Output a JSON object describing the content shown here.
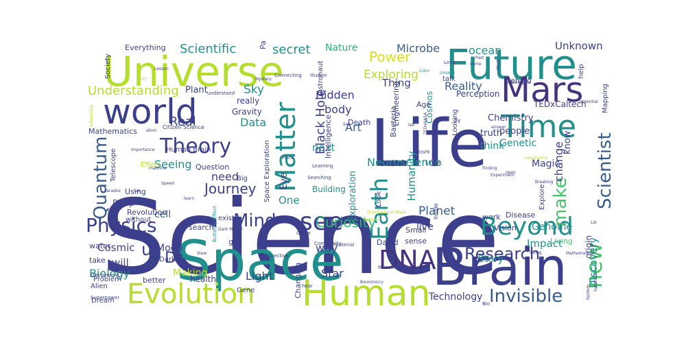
{
  "palette": {
    "navy": "#3b3f8c",
    "indigo": "#46337e",
    "teal": "#21908d",
    "green": "#2fb47c",
    "lime": "#b5de2b",
    "yellow": "#d8e219",
    "blue": "#365c8d",
    "sea": "#277f8e",
    "mint": "#4ac16d",
    "purple": "#472d7b"
  },
  "words": [
    {
      "text": "Science"
    },
    {
      "text": "Life"
    },
    {
      "text": "Space"
    },
    {
      "text": "Brain"
    },
    {
      "text": "Universe"
    },
    {
      "text": "Future"
    },
    {
      "text": "Human"
    },
    {
      "text": "world"
    },
    {
      "text": "Mars"
    },
    {
      "text": "Evolution"
    },
    {
      "text": "Time"
    },
    {
      "text": "Matter"
    },
    {
      "text": "see"
    },
    {
      "text": "Beyond"
    },
    {
      "text": "DNA"
    },
    {
      "text": "Theory"
    },
    {
      "text": "Earth"
    },
    {
      "text": "Scientist"
    },
    {
      "text": "Physics"
    },
    {
      "text": "Quantum"
    },
    {
      "text": "Invisible"
    },
    {
      "text": "new"
    },
    {
      "text": "Research"
    },
    {
      "text": "Mind"
    },
    {
      "text": "Journey"
    },
    {
      "text": "make"
    },
    {
      "text": "Power"
    },
    {
      "text": "Curiosity"
    },
    {
      "text": "Understanding"
    },
    {
      "text": "Exploring"
    },
    {
      "text": "secret"
    },
    {
      "text": "Nature"
    },
    {
      "text": "Scientific"
    },
    {
      "text": "Microbe"
    },
    {
      "text": "ocean"
    },
    {
      "text": "Unknown"
    },
    {
      "text": "Reality"
    },
    {
      "text": "Hidden"
    },
    {
      "text": "Thing"
    },
    {
      "text": "Black Hole"
    },
    {
      "text": "Neuroscience"
    },
    {
      "text": "Art"
    },
    {
      "text": "body"
    },
    {
      "text": "next"
    },
    {
      "text": "Genetic"
    },
    {
      "text": "Magic"
    },
    {
      "text": "Genome"
    },
    {
      "text": "change"
    },
    {
      "text": "know"
    },
    {
      "text": "think"
    },
    {
      "text": "Chemistry"
    },
    {
      "text": "Perception"
    },
    {
      "text": "Cosmos"
    },
    {
      "text": "truth"
    },
    {
      "text": "people"
    },
    {
      "text": "Real"
    },
    {
      "text": "Sky"
    },
    {
      "text": "Data"
    },
    {
      "text": "Plant"
    },
    {
      "text": "really"
    },
    {
      "text": "Gravity"
    },
    {
      "text": "Particle"
    },
    {
      "text": "Dr"
    },
    {
      "text": "u"
    },
    {
      "text": "Biology"
    },
    {
      "text": "Cosmic"
    },
    {
      "text": "Moon"
    },
    {
      "text": "will"
    },
    {
      "text": "Making"
    },
    {
      "text": "Light"
    },
    {
      "text": "Star"
    },
    {
      "text": "Technology"
    },
    {
      "text": "Discovery"
    },
    {
      "text": "Story"
    },
    {
      "text": "Impact"
    },
    {
      "text": "Planet"
    },
    {
      "text": "live"
    },
    {
      "text": "Humanity"
    },
    {
      "text": "One"
    },
    {
      "text": "need"
    },
    {
      "text": "Seeing"
    },
    {
      "text": "cell"
    },
    {
      "text": "Human Brain"
    },
    {
      "text": "Telescope"
    },
    {
      "text": "Eye"
    },
    {
      "text": "Exploration"
    },
    {
      "text": "Space Exploration"
    },
    {
      "text": "Building"
    },
    {
      "text": "Engineering"
    },
    {
      "text": "Everything"
    },
    {
      "text": "Society"
    },
    {
      "text": "Mathematics"
    },
    {
      "text": "Question"
    },
    {
      "text": "Big"
    },
    {
      "text": "Deep"
    },
    {
      "text": "Using"
    },
    {
      "text": "Revolution"
    },
    {
      "text": "water"
    },
    {
      "text": "take"
    },
    {
      "text": "Alien"
    },
    {
      "text": "Problem"
    },
    {
      "text": "Dream"
    },
    {
      "text": "better"
    },
    {
      "text": "health"
    },
    {
      "text": "Gene"
    },
    {
      "text": "Changing"
    },
    {
      "text": "Look"
    },
    {
      "text": "Small"
    },
    {
      "text": "David"
    },
    {
      "text": "sense"
    },
    {
      "text": "Autism"
    },
    {
      "text": "Vision"
    },
    {
      "text": "Disease"
    },
    {
      "text": "Explore"
    },
    {
      "text": "Living"
    },
    {
      "text": "origin"
    },
    {
      "text": "work"
    },
    {
      "text": "Dark"
    },
    {
      "text": "go"
    },
    {
      "text": "search"
    },
    {
      "text": "without"
    },
    {
      "text": "exist"
    },
    {
      "text": "way"
    },
    {
      "text": "Effect"
    },
    {
      "text": "Intelligence"
    },
    {
      "text": "Death"
    },
    {
      "text": "Bacteria"
    },
    {
      "text": "Age"
    },
    {
      "text": "Looking"
    },
    {
      "text": "TEDxCaltech"
    },
    {
      "text": "Mapping"
    },
    {
      "text": "help"
    },
    {
      "text": "behind"
    },
    {
      "text": "Astronaut"
    },
    {
      "text": "Citizen Science"
    },
    {
      "text": "talk"
    },
    {
      "text": "fly"
    },
    {
      "text": "Complexity"
    },
    {
      "text": "Perspective"
    },
    {
      "text": "Biomimicry"
    },
    {
      "text": "Microbiome"
    },
    {
      "text": "Within"
    },
    {
      "text": "Bio"
    },
    {
      "text": "Superpower"
    },
    {
      "text": "hear"
    },
    {
      "text": "material"
    },
    {
      "text": "Butterfly Effect"
    },
    {
      "text": "Discovering"
    },
    {
      "text": "Dark Matter"
    },
    {
      "text": "Learning"
    },
    {
      "text": "Searching"
    },
    {
      "text": "Game"
    },
    {
      "text": "Connecting"
    },
    {
      "text": "Illusion"
    },
    {
      "text": "Mystery"
    },
    {
      "text": "understand"
    },
    {
      "text": "Love"
    },
    {
      "text": "Color"
    },
    {
      "text": "Unseen"
    },
    {
      "text": "Past"
    },
    {
      "text": "come"
    },
    {
      "text": "Biological"
    },
    {
      "text": "Meet"
    },
    {
      "text": "TEDxNASA"
    },
    {
      "text": "CRISPR"
    },
    {
      "text": "Finding"
    },
    {
      "text": "Experiment"
    },
    {
      "text": "Limits"
    },
    {
      "text": "Breaking"
    },
    {
      "text": "Going"
    },
    {
      "text": "Inside"
    },
    {
      "text": "Speed"
    },
    {
      "text": "Importance"
    },
    {
      "text": "machine"
    },
    {
      "text": "Paradox"
    },
    {
      "text": "Let"
    },
    {
      "text": "learn"
    },
    {
      "text": "atom"
    },
    {
      "text": "Lesson"
    },
    {
      "text": "Sun"
    },
    {
      "text": "Astronomy"
    },
    {
      "text": "happen"
    },
    {
      "text": "Sex"
    },
    {
      "text": "Place"
    },
    {
      "text": "answer"
    },
    {
      "text": "lab"
    },
    {
      "text": "potential"
    },
    {
      "text": "experience"
    },
    {
      "text": "open"
    },
    {
      "text": "View"
    },
    {
      "text": "System"
    },
    {
      "text": "Synthetic"
    },
    {
      "text": "Lie"
    },
    {
      "text": "Mathematical"
    },
    {
      "text": "Gravitational Wave"
    }
  ]
}
